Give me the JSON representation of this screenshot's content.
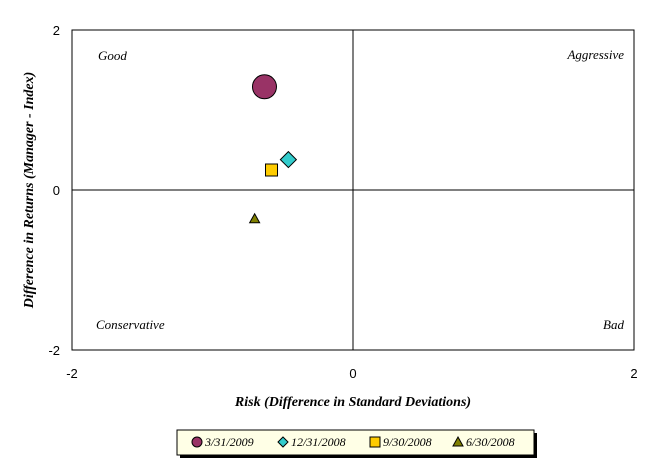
{
  "chart_data": {
    "type": "scatter",
    "xlabel": "Risk (Difference in Standard Deviations)",
    "ylabel": "Difference in Returns (Manager - Index)",
    "xlim": [
      -2,
      2
    ],
    "ylim": [
      -2,
      2
    ],
    "x_ticks": [
      "-2",
      "0",
      "2"
    ],
    "y_ticks": [
      "2",
      "0",
      "-2"
    ],
    "grid": false,
    "quadrant_labels": {
      "top_left": "Good",
      "top_right": "Aggressive",
      "bottom_left": "Conservative",
      "bottom_right": "Bad"
    },
    "legend_position": "bottom-center",
    "series": [
      {
        "name": "3/31/2009",
        "x": -0.63,
        "y": 1.29,
        "marker": "circle",
        "color": "#993366"
      },
      {
        "name": "12/31/2008",
        "x": -0.46,
        "y": 0.38,
        "marker": "diamond",
        "color": "#33CCCC"
      },
      {
        "name": "9/30/2008",
        "x": -0.58,
        "y": 0.25,
        "marker": "square",
        "color": "#FFCC00"
      },
      {
        "name": "6/30/2008",
        "x": -0.7,
        "y": -0.36,
        "marker": "triangle",
        "color": "#808000"
      }
    ]
  }
}
